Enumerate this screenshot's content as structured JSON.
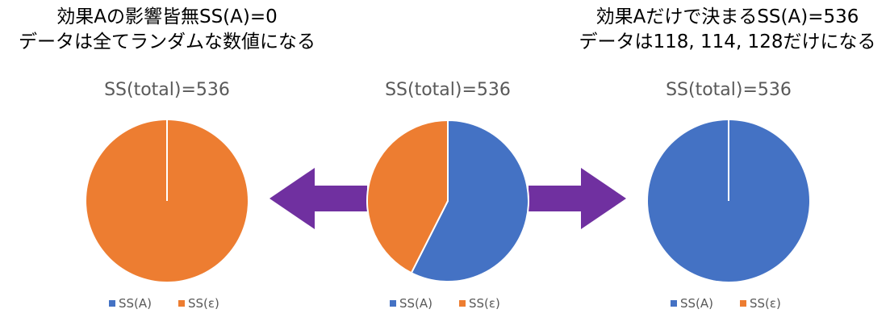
{
  "captions": {
    "left": {
      "line1": "効果Aの影響皆無SS(A)=0",
      "line2": "データは全てランダムな数値になる"
    },
    "right": {
      "line1": "効果Aだけで決まるSS(A)=536",
      "line2": "データは118, 114, 128だけになる"
    }
  },
  "colors": {
    "ss_a": "#4472C4",
    "ss_e": "#ED7D31",
    "arrow": "#7030A0",
    "title": "#595959"
  },
  "chart_data": [
    {
      "type": "pie",
      "title": "SS(total)=536",
      "categories": [
        "SS(A)",
        "SS(ε)"
      ],
      "values": [
        0,
        536
      ],
      "legend": "bottom"
    },
    {
      "type": "pie",
      "title": "SS(total)=536",
      "categories": [
        "SS(A)",
        "SS(ε)"
      ],
      "values": [
        308,
        228
      ],
      "legend": "bottom"
    },
    {
      "type": "pie",
      "title": "SS(total)=536",
      "categories": [
        "SS(A)",
        "SS(ε)"
      ],
      "values": [
        536,
        0
      ],
      "legend": "bottom"
    }
  ]
}
